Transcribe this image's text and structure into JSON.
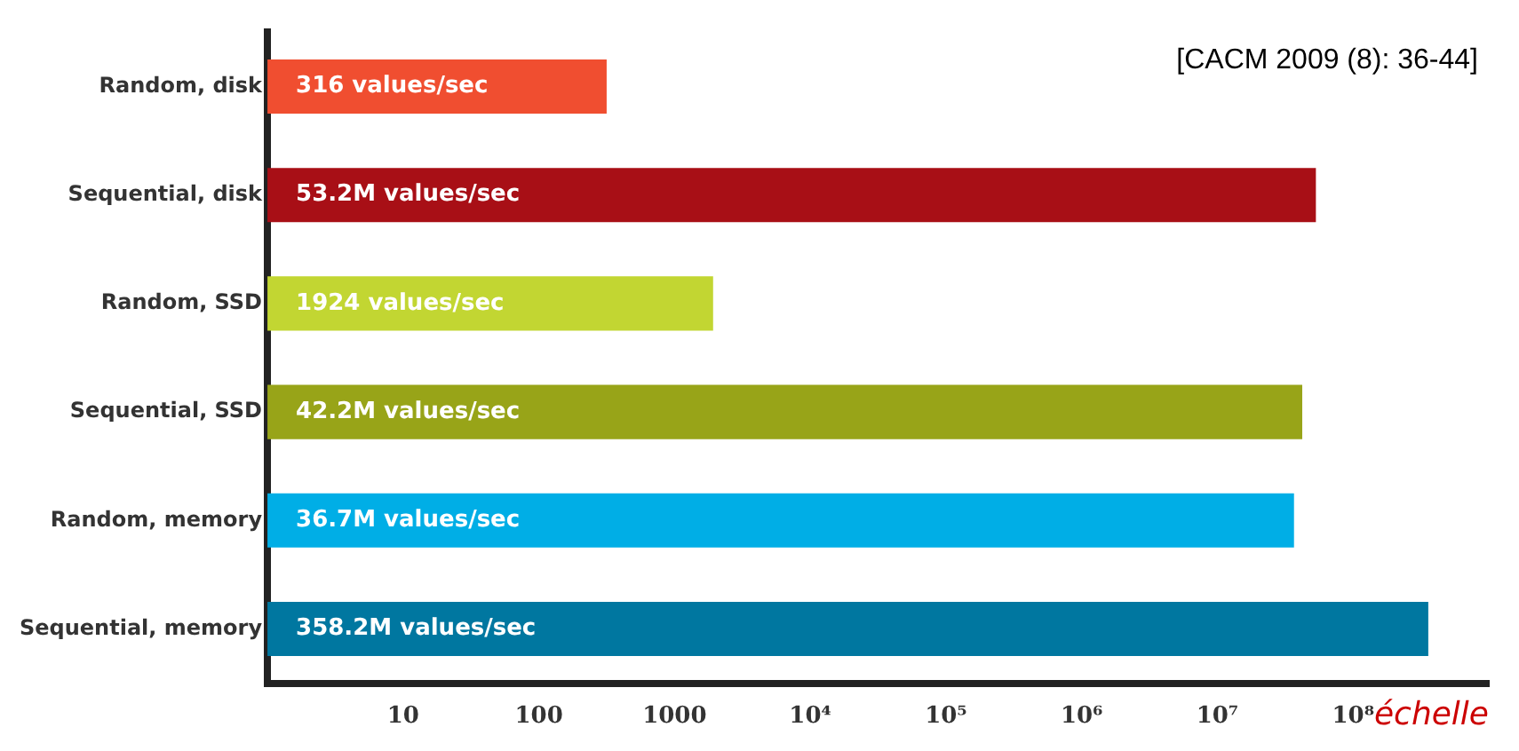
{
  "chart_data": {
    "type": "bar",
    "orientation": "horizontal",
    "log": "x",
    "categories": [
      "Random, disk",
      "Sequential, disk",
      "Random, SSD",
      "Sequential, SSD",
      "Random, memory",
      "Sequential, memory"
    ],
    "values": [
      316,
      53200000,
      1924,
      42200000,
      36700000,
      358200000
    ],
    "colors": [
      "#f04e30",
      "#a80f16",
      "#c2d632",
      "#98a418",
      "#00aee6",
      "#0077a0"
    ],
    "value_labels": [
      "316 values/sec",
      "53.2M values/sec",
      "1924 values/sec",
      "42.2M values/sec",
      "36.7M values/sec",
      "358.2M values/sec"
    ],
    "xlim": [
      1,
      1000000000
    ],
    "xticks": [
      10,
      100,
      1000,
      {
        "value": 10000,
        "label": "10⁴"
      },
      {
        "value": 100000,
        "label": "10⁵"
      },
      {
        "value": 1000000,
        "label": "10⁶"
      },
      {
        "value": 10000000,
        "label": "10⁷"
      },
      {
        "value": 100000000,
        "label": "10⁸"
      }
    ],
    "xlabel": "échelle",
    "annotations": [
      "[CACM 2009 (8): 36-44]"
    ],
    "grid": false,
    "legend": false
  }
}
